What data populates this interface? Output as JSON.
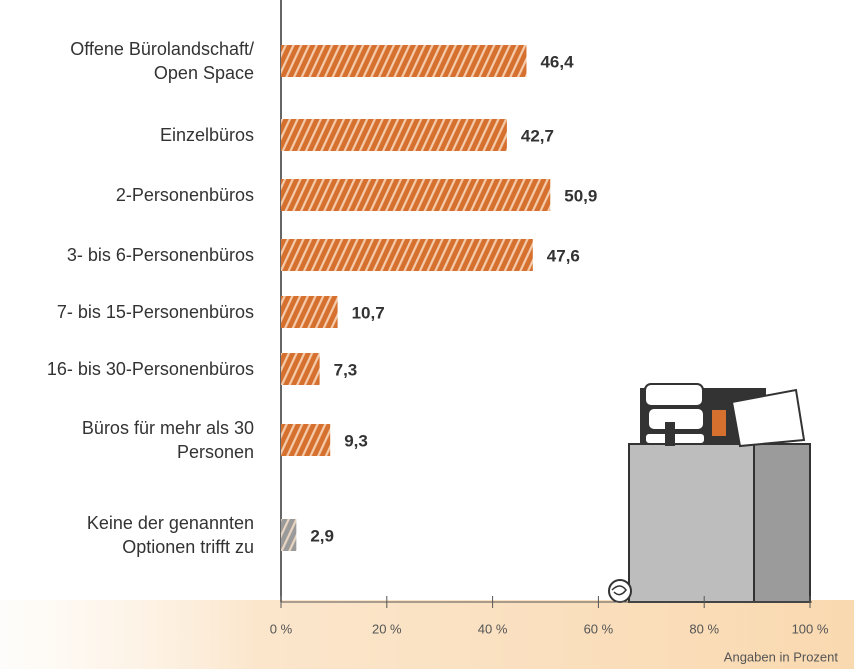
{
  "chart_data": {
    "type": "bar",
    "orientation": "horizontal",
    "categories": [
      "Offene Bürolandschaft/\nOpen Space",
      "Einzelbüros",
      "2-Personenbüros",
      "3- bis 6-Personenbüros",
      "7- bis 15-Personenbüros",
      "16- bis 30-Personenbüros",
      "Büros für mehr als 30\nPersonen",
      "Keine der genannten\nOptionen trifft zu"
    ],
    "values": [
      46.4,
      42.7,
      50.9,
      47.6,
      10.7,
      7.3,
      9.3,
      2.9
    ],
    "value_labels": [
      "46,4",
      "42,7",
      "50,9",
      "47,6",
      "10,7",
      "7,3",
      "9,3",
      "2,9"
    ],
    "colors": [
      "#d6702f",
      "#d6702f",
      "#d6702f",
      "#d6702f",
      "#d6702f",
      "#d6702f",
      "#d6702f",
      "#9a9a9a"
    ],
    "xlim": [
      0,
      100
    ],
    "xticks": [
      {
        "value": 0,
        "label": "0 %"
      },
      {
        "value": 20,
        "label": "20 %"
      },
      {
        "value": 40,
        "label": "40 %"
      },
      {
        "value": 60,
        "label": "60 %"
      },
      {
        "value": 80,
        "label": "80 %"
      },
      {
        "value": 100,
        "label": "100 %"
      }
    ],
    "x_label": "Angaben in Prozent"
  }
}
